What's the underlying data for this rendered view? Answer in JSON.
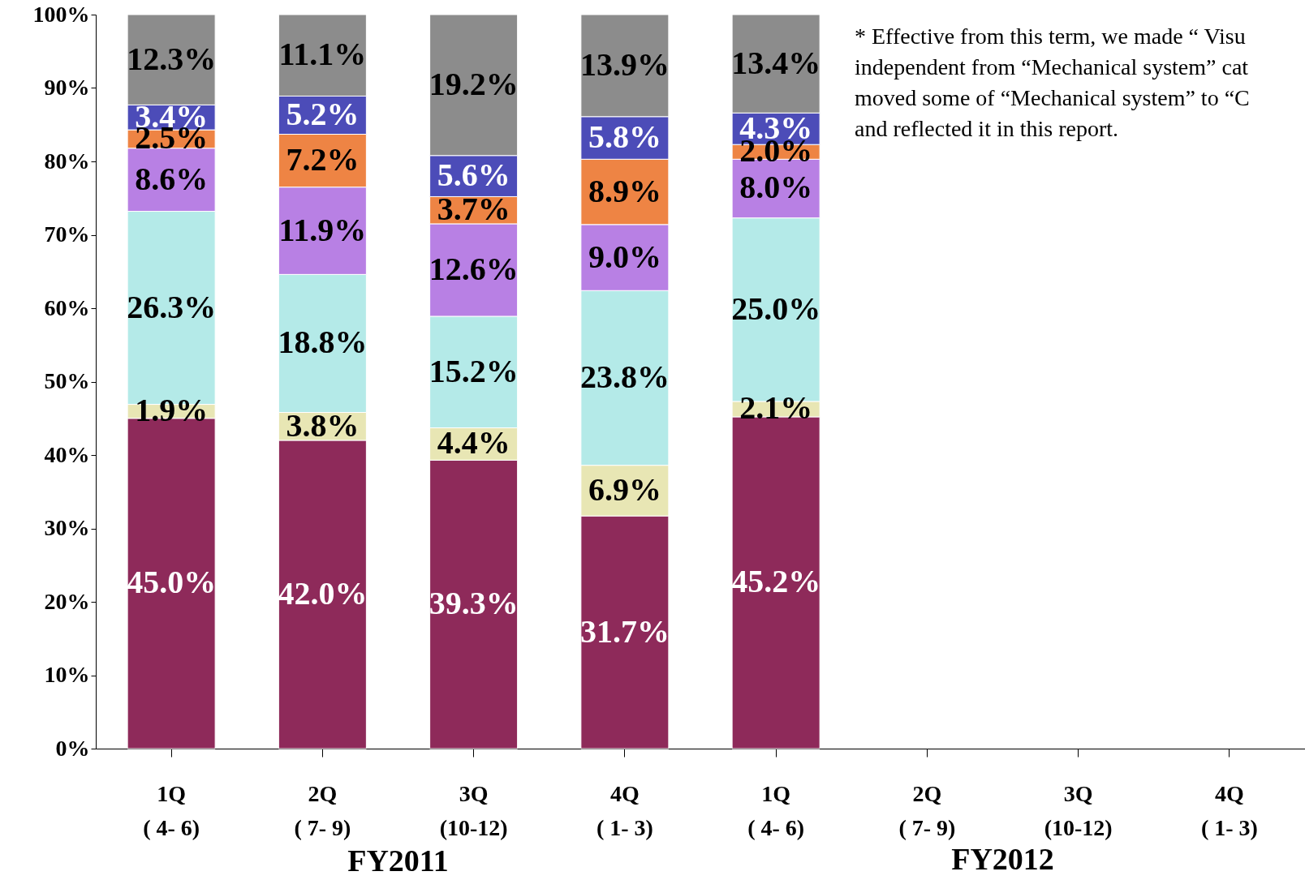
{
  "chart_data": {
    "type": "bar",
    "stacked": true,
    "categories": [
      "1Q\n( 4- 6)",
      "2Q\n( 7- 9)",
      "3Q\n(10-12)",
      "4Q\n( 1- 3)",
      "1Q\n( 4- 6)",
      "2Q\n( 7- 9)",
      "3Q\n(10-12)",
      "4Q\n( 1- 3)"
    ],
    "series": [
      {
        "color": "#8e2a5a",
        "values": [
          45.0,
          42.0,
          39.3,
          31.7,
          45.2,
          null,
          null,
          null
        ],
        "value_labels": [
          "45.0%",
          "42.0%",
          "39.3%",
          "31.7%",
          "45.2%",
          null,
          null,
          null
        ]
      },
      {
        "color": "#e8e6b4",
        "values": [
          1.9,
          3.8,
          4.4,
          6.9,
          2.1,
          null,
          null,
          null
        ],
        "value_labels": [
          "1.9%",
          "3.8%",
          "4.4%",
          "6.9%",
          "2.1%",
          null,
          null,
          null
        ]
      },
      {
        "color": "#b4eae8",
        "values": [
          26.3,
          18.8,
          15.2,
          23.8,
          25.0,
          null,
          null,
          null
        ],
        "value_labels": [
          "26.3%",
          "18.8%",
          "15.2%",
          "23.8%",
          "25.0%",
          null,
          null,
          null
        ]
      },
      {
        "color": "#b880e4",
        "values": [
          8.6,
          11.9,
          12.6,
          9.0,
          8.0,
          null,
          null,
          null
        ],
        "value_labels": [
          "8.6%",
          "11.9%",
          "12.6%",
          "9.0%",
          "8.0%",
          null,
          null,
          null
        ]
      },
      {
        "color": "#ee8444",
        "values": [
          2.5,
          7.2,
          3.7,
          8.9,
          2.0,
          null,
          null,
          null
        ],
        "value_labels": [
          "2.5%",
          "7.2%",
          "3.7%",
          "8.9%",
          "2.0%",
          null,
          null,
          null
        ]
      },
      {
        "color": "#4c4cb8",
        "values": [
          3.4,
          5.2,
          5.6,
          5.8,
          4.3,
          null,
          null,
          null
        ],
        "value_labels": [
          "3.4%",
          "5.2%",
          "5.6%",
          "5.8%",
          "4.3%",
          null,
          null,
          null
        ]
      },
      {
        "color": "#8c8c8c",
        "values": [
          12.3,
          11.1,
          19.2,
          13.9,
          13.4,
          null,
          null,
          null
        ],
        "value_labels": [
          "12.3%",
          "11.1%",
          "19.2%",
          "13.9%",
          "13.4%",
          null,
          null,
          null
        ]
      }
    ],
    "ylim": [
      0,
      100
    ],
    "yticks": [
      {
        "value": 0,
        "label": "0%"
      },
      {
        "value": 10,
        "label": "10%"
      },
      {
        "value": 20,
        "label": "20%"
      },
      {
        "value": 30,
        "label": "30%"
      },
      {
        "value": 40,
        "label": "40%"
      },
      {
        "value": 50,
        "label": "50%"
      },
      {
        "value": 60,
        "label": "60%"
      },
      {
        "value": 70,
        "label": "70%"
      },
      {
        "value": 80,
        "label": "80%"
      },
      {
        "value": 90,
        "label": "90%"
      },
      {
        "value": 100,
        "label": "100%"
      }
    ],
    "grid": false,
    "annotations": [
      "* Effective from this term, we made “ Visu\nindependent from “Mechanical system” cat\nmoved some of “Mechanical system” to  “C\nand reflected it in this report.",
      "FY2011",
      "FY2012"
    ]
  }
}
